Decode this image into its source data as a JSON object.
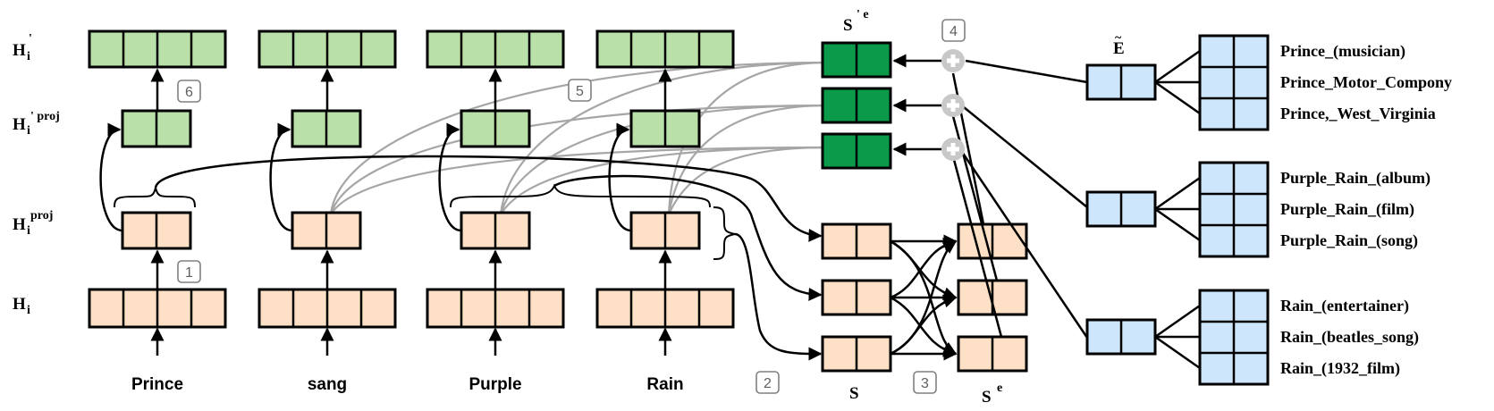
{
  "row_labels": {
    "h_prime": "H",
    "h_prime_sub": "i",
    "h_prime_sup": "'",
    "h_prime_proj": "H",
    "h_prime_proj_sub": "i",
    "h_prime_proj_sup": "' proj",
    "h_proj": "H",
    "h_proj_sub": "i",
    "h_proj_sup": "proj",
    "h": "H",
    "h_sub": "i"
  },
  "words": [
    "Prince",
    "sang",
    "Purple",
    "Rain"
  ],
  "labels": {
    "s_prime_e": "S",
    "s_prime_e_sup": "' e",
    "e_tilde": "E",
    "e_tilde_accent": "~",
    "s": "S",
    "s_e": "S",
    "s_e_sup": "e"
  },
  "steps": [
    "1",
    "2",
    "3",
    "4",
    "5",
    "6"
  ],
  "entity_groups": [
    [
      "Prince_(musician)",
      "Prince_Motor_Compony",
      "Prince,_West_Virginia"
    ],
    [
      "Purple_Rain_(album)",
      "Purple_Rain_(film)",
      "Purple_Rain_(song)"
    ],
    [
      "Rain_(entertainer)",
      "Rain_(beatles_song)",
      "Rain_(1932_film)"
    ]
  ],
  "colors": {
    "green_light": "#b8e0a8",
    "green_dark": "#0a9a4a",
    "peach": "#fde0c5",
    "blue": "#cde6fb",
    "gray_link": "#a6a6a6"
  }
}
